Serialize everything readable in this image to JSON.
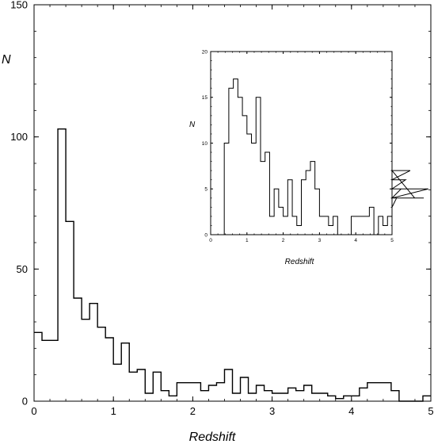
{
  "chart_data": [
    {
      "id": "main",
      "type": "histogram",
      "xlabel": "Redshift",
      "ylabel": "N",
      "xlim": [
        0,
        5
      ],
      "ylim": [
        0,
        150
      ],
      "xticks": [
        0,
        1,
        2,
        3,
        4,
        5
      ],
      "xtick_labels": [
        "0",
        "1",
        "2",
        "3",
        "4",
        "5"
      ],
      "yticks": [
        0,
        50,
        100,
        150
      ],
      "ytick_labels": [
        "0",
        "50",
        "100",
        "150"
      ],
      "grid": false,
      "bin_width": 0.1,
      "bin_start": 0,
      "values": [
        26,
        23,
        23,
        103,
        68,
        39,
        31,
        37,
        28,
        24,
        14,
        22,
        11,
        12,
        3,
        11,
        4,
        2,
        7,
        7,
        7,
        4,
        6,
        7,
        12,
        3,
        9,
        3,
        6,
        4,
        3,
        3,
        5,
        4,
        6,
        3,
        3,
        2,
        1,
        2,
        2,
        5,
        7,
        7,
        7,
        4,
        0,
        0,
        0,
        2
      ]
    },
    {
      "id": "inset",
      "type": "histogram",
      "xlabel": "Redshift",
      "ylabel": "N",
      "xlim": [
        0,
        5
      ],
      "ylim": [
        0,
        20
      ],
      "xticks": [
        0,
        1,
        2,
        3,
        4,
        5
      ],
      "xtick_labels": [
        "0",
        "1",
        "2",
        "3",
        "4",
        "5"
      ],
      "yticks": [
        0,
        5,
        10,
        15,
        20
      ],
      "ytick_labels": [
        "0",
        "5",
        "10",
        "15",
        "20"
      ],
      "grid": false,
      "bin_width": 0.125,
      "bin_start": 0.25,
      "values": [
        0,
        10,
        16,
        17,
        15,
        13,
        11,
        10,
        15,
        8,
        9,
        2,
        5,
        3,
        2,
        6,
        2,
        1,
        6,
        7,
        8,
        5,
        2,
        2,
        1,
        2,
        0,
        0,
        0,
        2,
        2,
        2,
        2,
        3,
        0,
        2,
        1,
        2,
        3,
        4,
        5,
        6,
        7,
        4,
        4,
        4,
        5
      ]
    }
  ]
}
